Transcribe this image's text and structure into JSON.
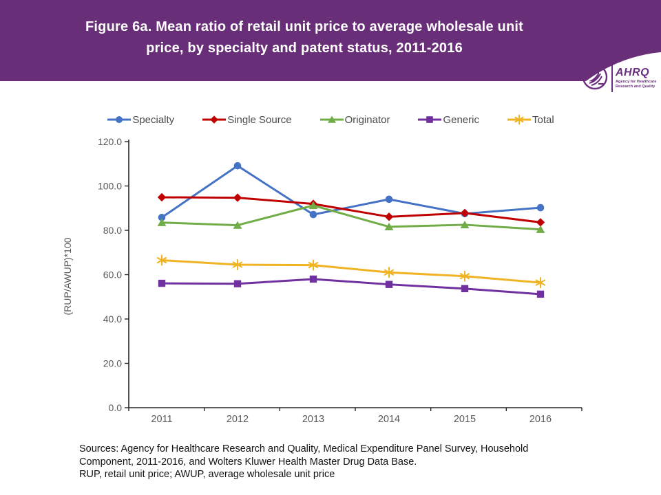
{
  "banner": {
    "title_line1": "Figure 6a. Mean ratio of retail unit price to average wholesale unit",
    "title_line2": "price, by specialty and patent status, 2011-2016",
    "background_color": "#682E78",
    "logo": {
      "org_abbr": "AHRQ",
      "org_name_line1": "Agency for Healthcare",
      "org_name_line2": "Research and Quality",
      "color": "#6A2D80"
    }
  },
  "chart_data": {
    "type": "line",
    "categories": [
      "2011",
      "2012",
      "2013",
      "2014",
      "2015",
      "2016"
    ],
    "series": [
      {
        "name": "Specialty",
        "color": "#4472C4",
        "marker": "circle",
        "values": [
          85.8,
          109.1,
          87.1,
          94.0,
          87.5,
          90.2
        ]
      },
      {
        "name": "Single Source",
        "color": "#C00000",
        "marker": "diamond",
        "values": [
          94.9,
          94.7,
          91.9,
          86.1,
          87.8,
          83.6
        ]
      },
      {
        "name": "Originator",
        "color": "#70AD47",
        "marker": "triangle",
        "values": [
          83.5,
          82.3,
          91.2,
          81.6,
          82.5,
          80.4
        ]
      },
      {
        "name": "Generic",
        "color": "#7030A0",
        "marker": "square",
        "values": [
          56.1,
          55.9,
          58.0,
          55.6,
          53.7,
          51.2
        ]
      },
      {
        "name": "Total",
        "color": "#F0B323",
        "marker": "asterisk",
        "values": [
          66.5,
          64.5,
          64.3,
          61.0,
          59.3,
          56.4
        ]
      }
    ],
    "ylabel": "(RUP/AWUP)*100",
    "ylim": [
      0,
      120
    ],
    "ytick_step": 20,
    "ytick_decimals": 1,
    "legend_position": "top",
    "grid": false,
    "axis_color": "#262626",
    "tick_label_color": "#595959"
  },
  "footer": {
    "line1": "Sources: Agency for Healthcare Research and Quality, Medical Expenditure Panel Survey, Household",
    "line2": "Component, 2011-2016, and Wolters Kluwer Health Master Drug Data Base.",
    "line3": "RUP, retail unit price; AWUP, average wholesale unit price"
  }
}
